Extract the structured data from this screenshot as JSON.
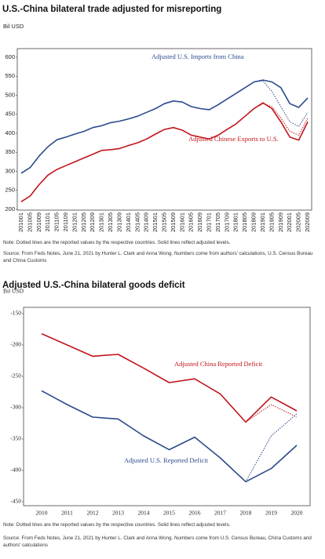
{
  "chart_data": [
    {
      "type": "line",
      "title": "U.S.-China bilateral trade adjusted for misreporting",
      "y_label": "Bil USD",
      "categories": [
        "201001",
        "201005",
        "201009",
        "201101",
        "201105",
        "201109",
        "201201",
        "201205",
        "201209",
        "201301",
        "201305",
        "201309",
        "201401",
        "201405",
        "201409",
        "201501",
        "201505",
        "201509",
        "201601",
        "201605",
        "201609",
        "201701",
        "201705",
        "201709",
        "201801",
        "201805",
        "201809",
        "201901",
        "201905",
        "201909",
        "202001",
        "202005",
        "202009"
      ],
      "series": [
        {
          "name": "Adjusted U.S. Imports from China",
          "color": "#2b4a8c",
          "style": "solid",
          "values": [
            295,
            310,
            340,
            365,
            383,
            390,
            398,
            405,
            415,
            420,
            428,
            432,
            438,
            445,
            455,
            465,
            478,
            485,
            482,
            470,
            465,
            462,
            475,
            490,
            505,
            520,
            535,
            540,
            535,
            520,
            478,
            468,
            493
          ]
        },
        {
          "color": "#2b4a8c",
          "style": "dotted",
          "values": [
            null,
            null,
            null,
            null,
            null,
            null,
            null,
            null,
            null,
            null,
            null,
            null,
            null,
            null,
            null,
            null,
            null,
            null,
            null,
            null,
            null,
            null,
            null,
            null,
            null,
            null,
            535,
            538,
            510,
            470,
            430,
            418,
            455
          ]
        },
        {
          "name": "Adjusted Chinese Exports to U.S.",
          "color": "#c0141c",
          "style": "solid",
          "values": [
            220,
            235,
            265,
            290,
            305,
            315,
            325,
            335,
            345,
            355,
            357,
            360,
            368,
            375,
            385,
            398,
            410,
            415,
            408,
            395,
            390,
            385,
            395,
            410,
            425,
            445,
            465,
            480,
            465,
            430,
            390,
            382,
            430
          ]
        },
        {
          "color": "#c0141c",
          "style": "dotted",
          "values": [
            null,
            null,
            null,
            null,
            null,
            null,
            null,
            null,
            null,
            null,
            null,
            null,
            null,
            null,
            null,
            null,
            null,
            null,
            null,
            null,
            null,
            null,
            null,
            null,
            null,
            null,
            465,
            478,
            470,
            440,
            405,
            395,
            440
          ]
        }
      ],
      "ylim": [
        200,
        600
      ],
      "yticks": [
        200,
        250,
        300,
        350,
        400,
        450,
        500,
        550,
        600
      ],
      "grid": false,
      "note": "Note: Dotted lines are the reported values by the respective countries. Solid lines reflect adjusted levels.",
      "source": "Source: From Feds Notes, June 21, 2021 by Hunter L. Clark and Anna Wong. Numbers come from authors' calculations, U.S. Census Bureau and China Customs"
    },
    {
      "type": "line",
      "title": "Adjusted U.S.-China bilateral goods deficit",
      "y_label": "Bil USD",
      "categories": [
        "2010",
        "2011",
        "2012",
        "2013",
        "2014",
        "2015",
        "2016",
        "2017",
        "2018",
        "2019",
        "2020"
      ],
      "series": [
        {
          "name": "Adjusted China Reported Deficit",
          "color": "#c0141c",
          "style": "solid",
          "values": [
            -182,
            -200,
            -218,
            -215,
            -237,
            -260,
            -254,
            -278,
            -323,
            -283,
            -305
          ]
        },
        {
          "color": "#c0141c",
          "style": "dotted",
          "values": [
            null,
            null,
            null,
            null,
            null,
            null,
            null,
            null,
            -323,
            -295,
            -315
          ]
        },
        {
          "name": "Adjusted U.S. Reported Deficit",
          "color": "#2b4a8c",
          "style": "solid",
          "values": [
            -273,
            -295,
            -315,
            -318,
            -345,
            -367,
            -347,
            -380,
            -418,
            -397,
            -360
          ]
        },
        {
          "color": "#2b4a8c",
          "style": "dotted",
          "values": [
            null,
            null,
            null,
            null,
            null,
            null,
            null,
            null,
            -418,
            -345,
            -310
          ]
        }
      ],
      "ylim": [
        -450,
        -150
      ],
      "yticks": [
        -450,
        -400,
        -350,
        -300,
        -250,
        -200,
        -150
      ],
      "grid": false,
      "note": "Note: Dotted lines are the reported values by the respective countries. Solid lines reflect adjusted levels.",
      "source": "Source: From Feds Notes, June 21, 2021 by Hunter L. Clark and Anna Wong. Numbers come from U.S. Census Bureau, China Customs and authors' calculations"
    }
  ]
}
